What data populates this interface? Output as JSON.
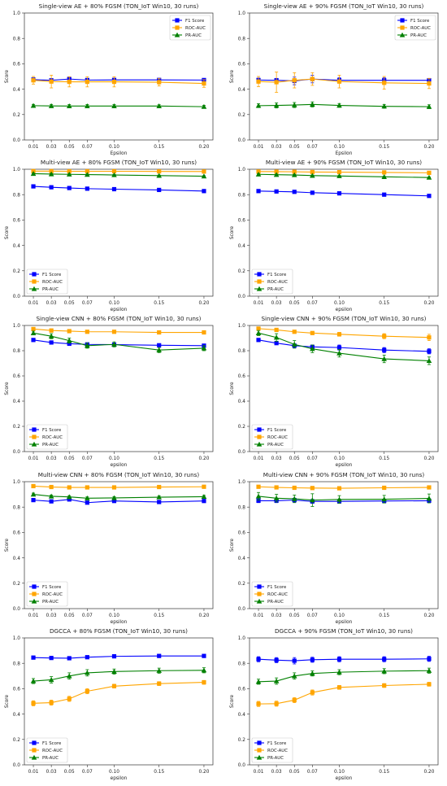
{
  "chart_data": [
    {
      "type": "line",
      "title": "Single-view AE + 80% FGSM (TON_IoT Win10, 30 runs)",
      "xlabel": "Epsilon",
      "ylabel": "Score",
      "x": [
        "0.01",
        "0.03",
        "0.05",
        "0.07",
        "0.10",
        "0.15",
        "0.20"
      ],
      "xvals": [
        0.01,
        0.03,
        0.05,
        0.07,
        0.1,
        0.15,
        0.2
      ],
      "yticks": [
        "0.0",
        "0.2",
        "0.4",
        "0.6",
        "0.8",
        "1.0"
      ],
      "ylim": [
        0,
        1
      ],
      "legend": "top-right",
      "series": [
        {
          "name": "F1 Score",
          "color": "#0000ff",
          "marker": "square",
          "values": [
            0.475,
            0.47,
            0.48,
            0.472,
            0.473,
            0.473,
            0.472
          ],
          "err": [
            0.015,
            0.01,
            0.01,
            0.01,
            0.01,
            0.01,
            0.01
          ]
        },
        {
          "name": "ROC-AUC",
          "color": "#ffa500",
          "marker": "square",
          "values": [
            0.47,
            0.46,
            0.458,
            0.458,
            0.458,
            0.455,
            0.445
          ],
          "err": [
            0.03,
            0.05,
            0.04,
            0.04,
            0.04,
            0.03,
            0.03
          ]
        },
        {
          "name": "PR-AUC",
          "color": "#008000",
          "marker": "triangle",
          "values": [
            0.27,
            0.268,
            0.267,
            0.267,
            0.267,
            0.267,
            0.262
          ],
          "err": [
            0.01,
            0.012,
            0.012,
            0.012,
            0.012,
            0.01,
            0.01
          ]
        }
      ]
    },
    {
      "type": "line",
      "title": "Single-view AE + 90% FGSM (TON_IoT Win10, 30 runs)",
      "xlabel": "Epsilon",
      "ylabel": "Score",
      "x": [
        "0.01",
        "0.03",
        "0.05",
        "0.07",
        "0.10",
        "0.15",
        "0.20"
      ],
      "xvals": [
        0.01,
        0.03,
        0.05,
        0.07,
        0.1,
        0.15,
        0.2
      ],
      "yticks": [
        "0.0",
        "0.2",
        "0.4",
        "0.6",
        "0.8",
        "1.0"
      ],
      "ylim": [
        0,
        1
      ],
      "legend": "top-right",
      "series": [
        {
          "name": "F1 Score",
          "color": "#0000ff",
          "marker": "square",
          "values": [
            0.472,
            0.47,
            0.465,
            0.48,
            0.47,
            0.47,
            0.47
          ],
          "err": [
            0.015,
            0.015,
            0.03,
            0.03,
            0.02,
            0.02,
            0.015
          ]
        },
        {
          "name": "ROC-AUC",
          "color": "#ffa500",
          "marker": "square",
          "values": [
            0.46,
            0.455,
            0.47,
            0.48,
            0.46,
            0.45,
            0.445
          ],
          "err": [
            0.04,
            0.08,
            0.06,
            0.05,
            0.05,
            0.05,
            0.04
          ]
        },
        {
          "name": "PR-AUC",
          "color": "#008000",
          "marker": "triangle",
          "values": [
            0.27,
            0.272,
            0.275,
            0.28,
            0.272,
            0.265,
            0.262
          ],
          "err": [
            0.015,
            0.02,
            0.02,
            0.02,
            0.015,
            0.015,
            0.015
          ]
        }
      ]
    },
    {
      "type": "line",
      "title": "Multi-view AE + 80% FGSM (TON_IoT Win10, 30 runs)",
      "xlabel": "epsilon",
      "ylabel": "Score",
      "x": [
        "0.01",
        "0.03",
        "0.05",
        "0.07",
        "0.10",
        "0.15",
        "0.20"
      ],
      "xvals": [
        0.01,
        0.03,
        0.05,
        0.07,
        0.1,
        0.15,
        0.2
      ],
      "yticks": [
        "0.0",
        "0.2",
        "0.4",
        "0.6",
        "0.8",
        "1.0"
      ],
      "ylim": [
        0,
        1
      ],
      "legend": "bottom-left",
      "series": [
        {
          "name": "F1 Score",
          "color": "#0000ff",
          "marker": "square",
          "values": [
            0.865,
            0.858,
            0.852,
            0.847,
            0.843,
            0.837,
            0.828
          ],
          "err": [
            0.005,
            0.005,
            0.005,
            0.005,
            0.005,
            0.005,
            0.005
          ]
        },
        {
          "name": "ROC-AUC",
          "color": "#ffa500",
          "marker": "square",
          "values": [
            0.985,
            0.985,
            0.984,
            0.984,
            0.984,
            0.983,
            0.982
          ],
          "err": [
            0.003,
            0.003,
            0.003,
            0.003,
            0.003,
            0.003,
            0.003
          ]
        },
        {
          "name": "PR-AUC",
          "color": "#008000",
          "marker": "triangle",
          "values": [
            0.965,
            0.962,
            0.96,
            0.958,
            0.955,
            0.95,
            0.945
          ],
          "err": [
            0.004,
            0.004,
            0.004,
            0.004,
            0.004,
            0.004,
            0.004
          ]
        }
      ]
    },
    {
      "type": "line",
      "title": "Multi-view AE + 90% FGSM (TON_IoT Win10, 30 runs)",
      "xlabel": "epsilon",
      "ylabel": "Score",
      "x": [
        "0.01",
        "0.03",
        "0.05",
        "0.07",
        "0.10",
        "0.15",
        "0.20"
      ],
      "xvals": [
        0.01,
        0.03,
        0.05,
        0.07,
        0.1,
        0.15,
        0.2
      ],
      "yticks": [
        "0.0",
        "0.2",
        "0.4",
        "0.6",
        "0.8",
        "1.0"
      ],
      "ylim": [
        0,
        1
      ],
      "legend": "bottom-left",
      "series": [
        {
          "name": "F1 Score",
          "color": "#0000ff",
          "marker": "square",
          "values": [
            0.828,
            0.825,
            0.822,
            0.815,
            0.81,
            0.8,
            0.79
          ],
          "err": [
            0.006,
            0.006,
            0.006,
            0.006,
            0.006,
            0.006,
            0.008
          ]
        },
        {
          "name": "ROC-AUC",
          "color": "#ffa500",
          "marker": "square",
          "values": [
            0.982,
            0.981,
            0.98,
            0.978,
            0.977,
            0.975,
            0.972
          ],
          "err": [
            0.003,
            0.003,
            0.003,
            0.003,
            0.003,
            0.003,
            0.003
          ]
        },
        {
          "name": "PR-AUC",
          "color": "#008000",
          "marker": "triangle",
          "values": [
            0.96,
            0.957,
            0.955,
            0.95,
            0.947,
            0.94,
            0.935
          ],
          "err": [
            0.004,
            0.004,
            0.004,
            0.004,
            0.004,
            0.004,
            0.004
          ]
        }
      ]
    },
    {
      "type": "line",
      "title": "Single-view CNN + 80% FGSM (TON_IoT Win10, 30 runs)",
      "xlabel": "epsilon",
      "ylabel": "Score",
      "x": [
        "0.01",
        "0.03",
        "0.05",
        "0.07",
        "0.10",
        "0.15",
        "0.20"
      ],
      "xvals": [
        0.01,
        0.03,
        0.05,
        0.07,
        0.1,
        0.15,
        0.2
      ],
      "yticks": [
        "0.0",
        "0.2",
        "0.4",
        "0.6",
        "0.8",
        "1.0"
      ],
      "ylim": [
        0,
        1
      ],
      "legend": "bottom-left",
      "series": [
        {
          "name": "F1 Score",
          "color": "#0000ff",
          "marker": "square",
          "values": [
            0.885,
            0.865,
            0.855,
            0.85,
            0.848,
            0.843,
            0.84
          ],
          "err": [
            0.008,
            0.008,
            0.008,
            0.008,
            0.008,
            0.008,
            0.008
          ]
        },
        {
          "name": "ROC-AUC",
          "color": "#ffa500",
          "marker": "square",
          "values": [
            0.972,
            0.96,
            0.955,
            0.95,
            0.95,
            0.945,
            0.945
          ],
          "err": [
            0.005,
            0.005,
            0.005,
            0.005,
            0.005,
            0.005,
            0.005
          ]
        },
        {
          "name": "PR-AUC",
          "color": "#008000",
          "marker": "triangle",
          "values": [
            0.94,
            0.915,
            0.88,
            0.84,
            0.85,
            0.805,
            0.82
          ],
          "err": [
            0.015,
            0.02,
            0.02,
            0.02,
            0.02,
            0.02,
            0.02
          ]
        }
      ]
    },
    {
      "type": "line",
      "title": "Single-view CNN + 90% FGSM (TON_IoT Win10, 30 runs)",
      "xlabel": "epsilon",
      "ylabel": "Score",
      "x": [
        "0.01",
        "0.03",
        "0.05",
        "0.07",
        "0.10",
        "0.15",
        "0.20"
      ],
      "xvals": [
        0.01,
        0.03,
        0.05,
        0.07,
        0.1,
        0.15,
        0.2
      ],
      "yticks": [
        "0.0",
        "0.2",
        "0.4",
        "0.6",
        "0.8",
        "1.0"
      ],
      "ylim": [
        0,
        1
      ],
      "legend": "bottom-left",
      "series": [
        {
          "name": "F1 Score",
          "color": "#0000ff",
          "marker": "square",
          "values": [
            0.885,
            0.86,
            0.84,
            0.83,
            0.825,
            0.805,
            0.795
          ],
          "err": [
            0.01,
            0.01,
            0.012,
            0.015,
            0.02,
            0.02,
            0.02
          ]
        },
        {
          "name": "ROC-AUC",
          "color": "#ffa500",
          "marker": "square",
          "values": [
            0.975,
            0.965,
            0.95,
            0.94,
            0.93,
            0.915,
            0.905
          ],
          "err": [
            0.008,
            0.01,
            0.01,
            0.012,
            0.015,
            0.02,
            0.025
          ]
        },
        {
          "name": "PR-AUC",
          "color": "#008000",
          "marker": "triangle",
          "values": [
            0.94,
            0.905,
            0.85,
            0.815,
            0.78,
            0.735,
            0.72
          ],
          "err": [
            0.02,
            0.03,
            0.03,
            0.03,
            0.03,
            0.03,
            0.03
          ]
        }
      ]
    },
    {
      "type": "line",
      "title": "Multi-view CNN + 80% FGSM (TON_IoT Win10, 30 runs)",
      "xlabel": "epsilon",
      "ylabel": "Score",
      "x": [
        "0.01",
        "0.03",
        "0.05",
        "0.07",
        "0.10",
        "0.15",
        "0.20"
      ],
      "xvals": [
        0.01,
        0.03,
        0.05,
        0.07,
        0.1,
        0.15,
        0.2
      ],
      "yticks": [
        "0.0",
        "0.2",
        "0.4",
        "0.6",
        "0.8",
        "1.0"
      ],
      "ylim": [
        0,
        1
      ],
      "legend": "bottom-left",
      "series": [
        {
          "name": "F1 Score",
          "color": "#0000ff",
          "marker": "square",
          "values": [
            0.855,
            0.845,
            0.86,
            0.835,
            0.848,
            0.84,
            0.848
          ],
          "err": [
            0.008,
            0.008,
            0.008,
            0.008,
            0.008,
            0.008,
            0.008
          ]
        },
        {
          "name": "ROC-AUC",
          "color": "#ffa500",
          "marker": "square",
          "values": [
            0.965,
            0.958,
            0.955,
            0.955,
            0.955,
            0.958,
            0.96
          ],
          "err": [
            0.004,
            0.004,
            0.004,
            0.004,
            0.004,
            0.004,
            0.004
          ]
        },
        {
          "name": "PR-AUC",
          "color": "#008000",
          "marker": "triangle",
          "values": [
            0.9,
            0.885,
            0.88,
            0.87,
            0.872,
            0.878,
            0.882
          ],
          "err": [
            0.01,
            0.01,
            0.01,
            0.01,
            0.01,
            0.01,
            0.01
          ]
        }
      ]
    },
    {
      "type": "line",
      "title": "Multi-view CNN + 90% FGSM (TON_IoT Win10, 30 runs)",
      "xlabel": "epsilon",
      "ylabel": "Score",
      "x": [
        "0.01",
        "0.03",
        "0.05",
        "0.07",
        "0.10",
        "0.15",
        "0.20"
      ],
      "xvals": [
        0.01,
        0.03,
        0.05,
        0.07,
        0.1,
        0.15,
        0.2
      ],
      "yticks": [
        "0.0",
        "0.2",
        "0.4",
        "0.6",
        "0.8",
        "1.0"
      ],
      "ylim": [
        0,
        1
      ],
      "legend": "bottom-left",
      "series": [
        {
          "name": "F1 Score",
          "color": "#0000ff",
          "marker": "square",
          "values": [
            0.85,
            0.85,
            0.855,
            0.845,
            0.845,
            0.848,
            0.85
          ],
          "err": [
            0.015,
            0.015,
            0.015,
            0.015,
            0.015,
            0.015,
            0.015
          ]
        },
        {
          "name": "ROC-AUC",
          "color": "#ffa500",
          "marker": "square",
          "values": [
            0.96,
            0.955,
            0.952,
            0.95,
            0.948,
            0.952,
            0.955
          ],
          "err": [
            0.005,
            0.005,
            0.005,
            0.005,
            0.005,
            0.005,
            0.005
          ]
        },
        {
          "name": "PR-AUC",
          "color": "#008000",
          "marker": "triangle",
          "values": [
            0.885,
            0.87,
            0.865,
            0.855,
            0.86,
            0.862,
            0.868
          ],
          "err": [
            0.03,
            0.03,
            0.03,
            0.05,
            0.03,
            0.03,
            0.035
          ]
        }
      ]
    },
    {
      "type": "line",
      "title": "DGCCA + 80% FGSM (TON_IoT Win10, 30 runs)",
      "xlabel": "epsilon",
      "ylabel": "Score",
      "x": [
        "0.01",
        "0.03",
        "0.05",
        "0.07",
        "0.10",
        "0.15",
        "0.20"
      ],
      "xvals": [
        0.01,
        0.03,
        0.05,
        0.07,
        0.1,
        0.15,
        0.2
      ],
      "yticks": [
        "0.0",
        "0.2",
        "0.4",
        "0.6",
        "0.8",
        "1.0"
      ],
      "ylim": [
        0,
        1
      ],
      "legend": "bottom-left",
      "series": [
        {
          "name": "F1 Score",
          "color": "#0000ff",
          "marker": "square",
          "values": [
            0.845,
            0.842,
            0.84,
            0.848,
            0.855,
            0.858,
            0.858
          ],
          "err": [
            0.008,
            0.008,
            0.01,
            0.008,
            0.008,
            0.008,
            0.008
          ]
        },
        {
          "name": "ROC-AUC",
          "color": "#ffa500",
          "marker": "square",
          "values": [
            0.485,
            0.49,
            0.52,
            0.58,
            0.62,
            0.64,
            0.65
          ],
          "err": [
            0.02,
            0.02,
            0.02,
            0.02,
            0.015,
            0.015,
            0.015
          ]
        },
        {
          "name": "PR-AUC",
          "color": "#008000",
          "marker": "triangle",
          "values": [
            0.66,
            0.67,
            0.7,
            0.725,
            0.735,
            0.742,
            0.745
          ],
          "err": [
            0.02,
            0.025,
            0.025,
            0.025,
            0.02,
            0.02,
            0.02
          ]
        }
      ]
    },
    {
      "type": "line",
      "title": "DGCCA + 90% FGSM (TON_IoT Win10, 30 runs)",
      "xlabel": "epsilon",
      "ylabel": "Score",
      "x": [
        "0.01",
        "0.03",
        "0.05",
        "0.07",
        "0.10",
        "0.15",
        "0.20"
      ],
      "xvals": [
        0.01,
        0.03,
        0.05,
        0.07,
        0.1,
        0.15,
        0.2
      ],
      "yticks": [
        "0.0",
        "0.2",
        "0.4",
        "0.6",
        "0.8",
        "1.0"
      ],
      "ylim": [
        0,
        1
      ],
      "legend": "bottom-left",
      "series": [
        {
          "name": "F1 Score",
          "color": "#0000ff",
          "marker": "square",
          "values": [
            0.832,
            0.825,
            0.82,
            0.828,
            0.832,
            0.832,
            0.835
          ],
          "err": [
            0.02,
            0.02,
            0.025,
            0.02,
            0.02,
            0.02,
            0.02
          ]
        },
        {
          "name": "ROC-AUC",
          "color": "#ffa500",
          "marker": "square",
          "values": [
            0.48,
            0.482,
            0.51,
            0.57,
            0.61,
            0.625,
            0.635
          ],
          "err": [
            0.02,
            0.02,
            0.02,
            0.02,
            0.015,
            0.015,
            0.015
          ]
        },
        {
          "name": "PR-AUC",
          "color": "#008000",
          "marker": "triangle",
          "values": [
            0.655,
            0.66,
            0.7,
            0.72,
            0.73,
            0.738,
            0.742
          ],
          "err": [
            0.02,
            0.025,
            0.025,
            0.02,
            0.02,
            0.02,
            0.02
          ]
        }
      ]
    }
  ]
}
